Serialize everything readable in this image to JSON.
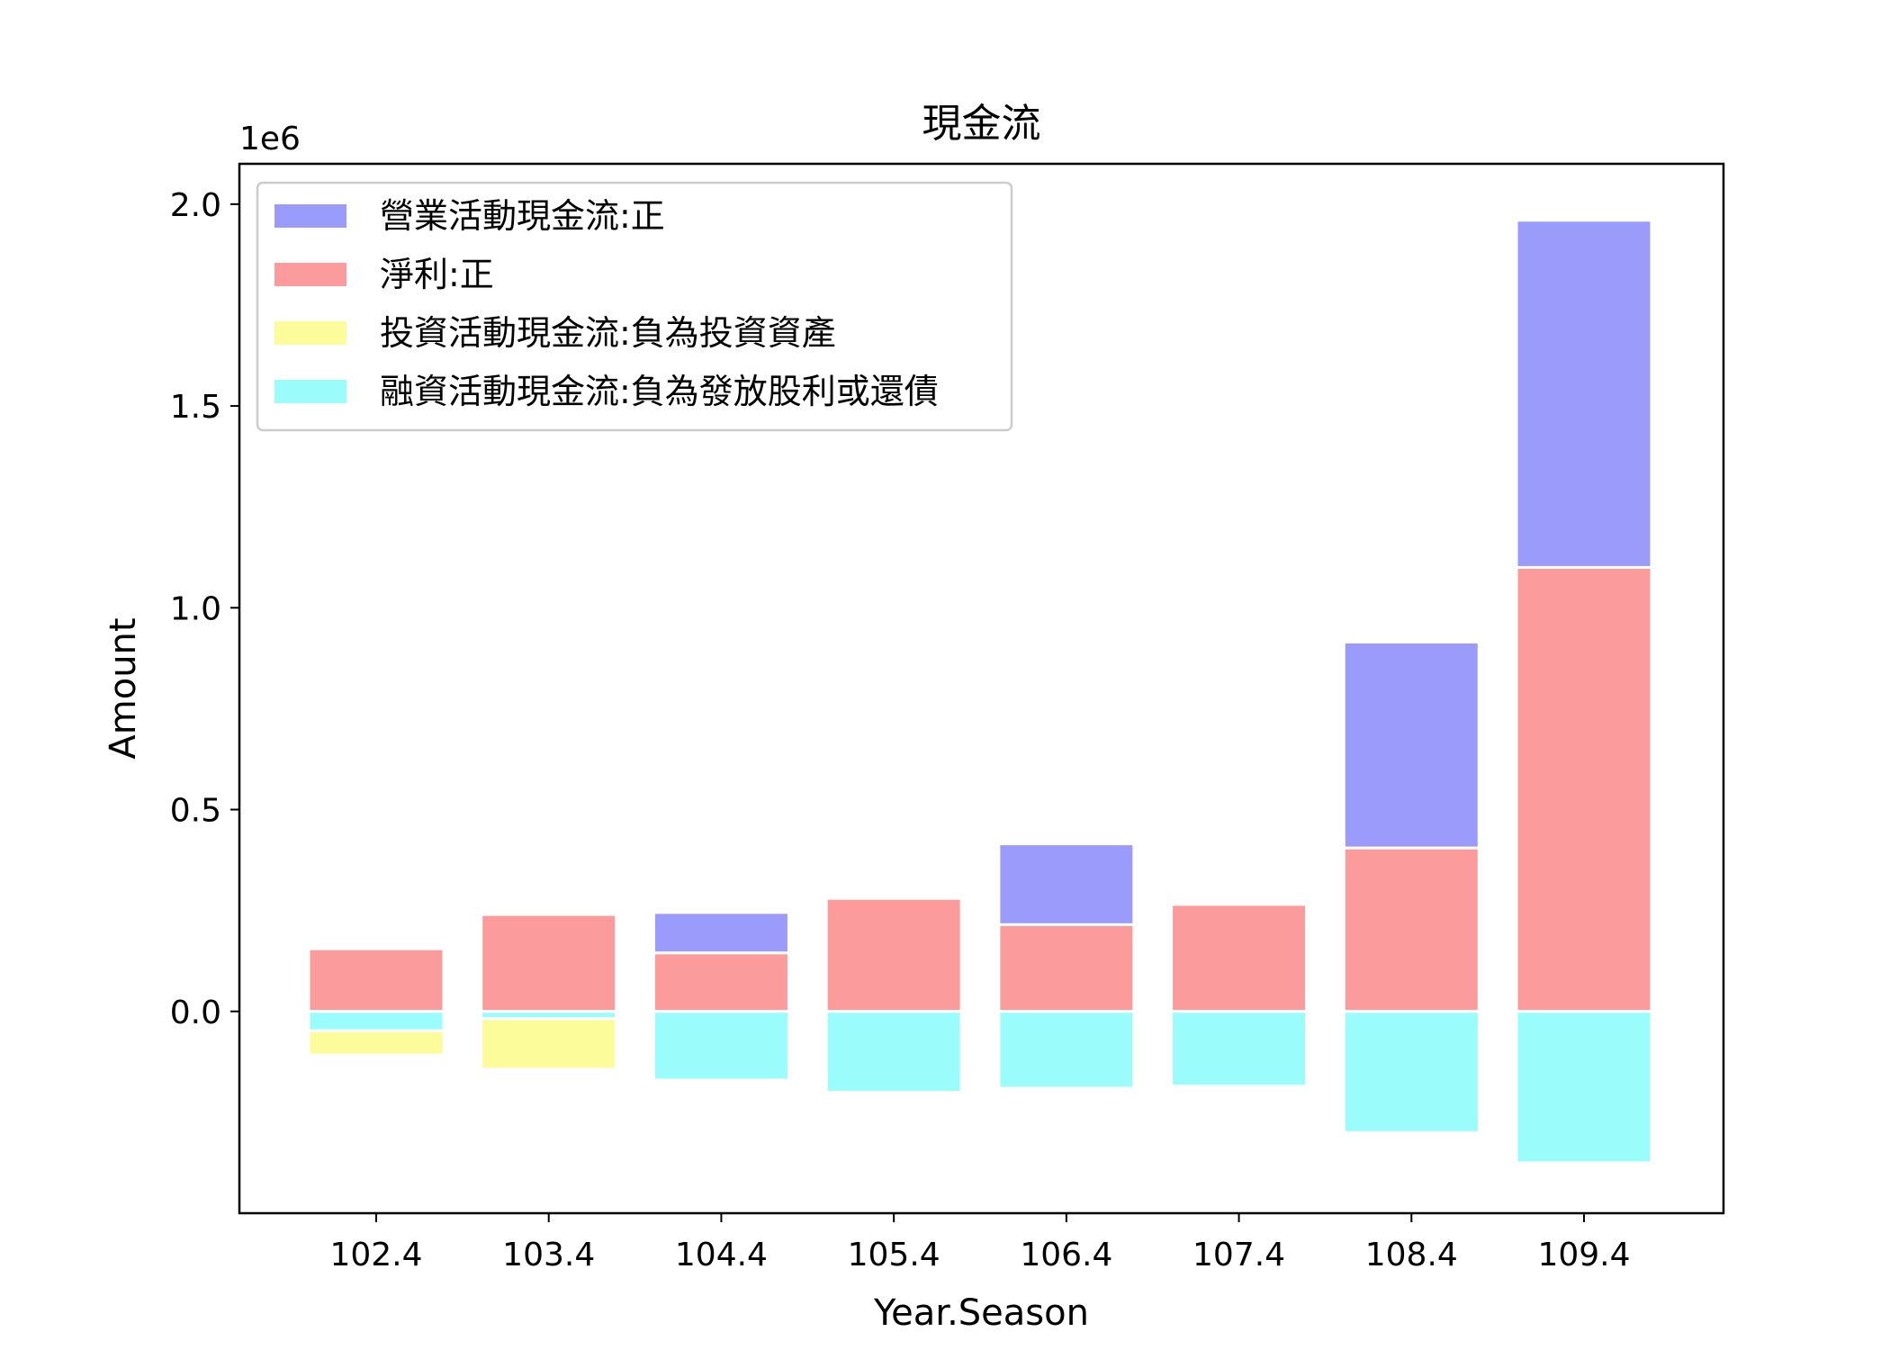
{
  "chart_data": {
    "type": "bar",
    "stacked": true,
    "title": "現金流",
    "xlabel": "Year.Season",
    "ylabel": "Amount",
    "y_scale_label": "1e6",
    "y_scale": 1000000,
    "categories": [
      "102.4",
      "103.4",
      "104.4",
      "105.4",
      "106.4",
      "107.4",
      "108.4",
      "109.4"
    ],
    "ylim": [
      -0.5,
      2.1
    ],
    "yticks": [
      0.0,
      0.5,
      1.0,
      1.5,
      2.0
    ],
    "ytick_labels": [
      "0.0",
      "0.5",
      "1.0",
      "1.5",
      "2.0"
    ],
    "grid": false,
    "legend_position": "top-left",
    "series": [
      {
        "name": "營業活動現金流:正",
        "color": "#9b9bfc",
        "values": [
          0,
          0,
          0.1,
          0,
          0.2,
          0,
          0.51,
          0.86
        ]
      },
      {
        "name": "淨利:正",
        "color": "#fc9b9b",
        "values": [
          0.155,
          0.24,
          0.145,
          0.28,
          0.215,
          0.265,
          0.405,
          1.1
        ]
      },
      {
        "name": "投資活動現金流:負為投資資產",
        "color": "#fcfc9b",
        "values": [
          -0.06,
          -0.125,
          0,
          0,
          0,
          0,
          0,
          0
        ]
      },
      {
        "name": "融資活動現金流:負為發放股利或還債",
        "color": "#9bfcfc",
        "values": [
          -0.048,
          -0.018,
          -0.17,
          -0.2,
          -0.19,
          -0.185,
          -0.3,
          -0.375
        ]
      }
    ]
  }
}
